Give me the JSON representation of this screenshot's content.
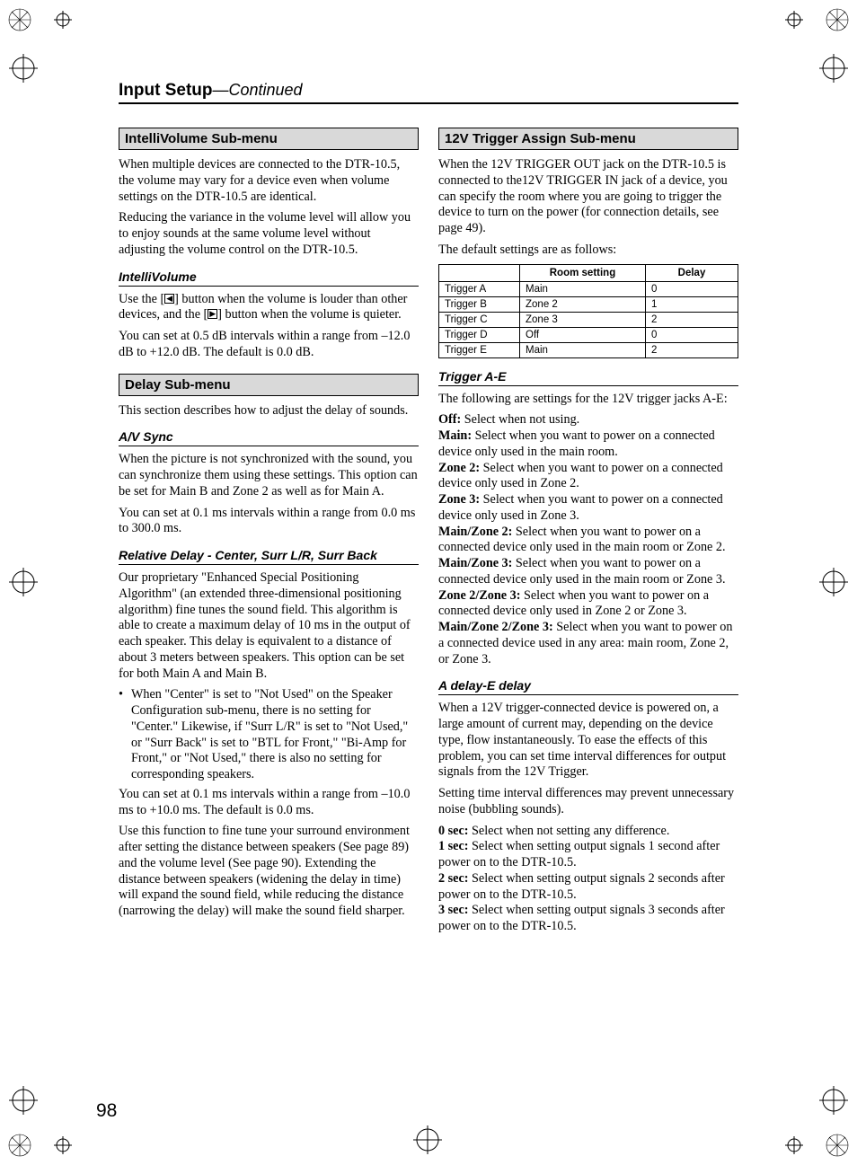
{
  "page": {
    "title_bold": "Input Setup",
    "title_cont": "—Continued",
    "number": "98"
  },
  "left": {
    "h1": "IntelliVolume Sub-menu",
    "p1": "When multiple devices are connected to the DTR-10.5, the volume may vary for a device even when volume settings on the DTR-10.5 are identical.",
    "p2": "Reducing the variance in the volume level will allow you to enjoy sounds at the same volume level without adjusting the volume control on the DTR-10.5.",
    "sub1": "IntelliVolume",
    "p3a": "Use the [",
    "p3b": "] button when the volume is louder than other devices, and the [",
    "p3c": "] button when the volume is quieter.",
    "p4": "You can set at 0.5 dB intervals within a range from –12.0 dB to +12.0 dB. The default is 0.0 dB.",
    "h2": "Delay Sub-menu",
    "p5": "This section describes how to adjust the delay of sounds.",
    "sub2": "A/V Sync",
    "p6": "When the picture is not synchronized with the sound, you can synchronize them using these settings. This option can be set for Main B and Zone 2 as well as for Main A.",
    "p7": "You can set at 0.1 ms intervals within a range from 0.0 ms to 300.0 ms.",
    "sub3": "Relative Delay - Center, Surr L/R, Surr Back",
    "p8": "Our proprietary \"Enhanced Special Positioning Algorithm\" (an extended three-dimensional positioning algorithm) fine tunes the sound field. This algorithm is able to create a maximum delay of 10 ms in the output of each speaker. This delay is equivalent to a distance of about 3 meters between speakers. This option can be set for both Main A and Main B.",
    "bullet1": "When \"Center\" is set to \"Not Used\" on the Speaker Configuration sub-menu, there is no setting for \"Center.\" Likewise, if \"Surr L/R\" is set to \"Not Used,\" or \"Surr Back\" is set to \"BTL for Front,\" \"Bi-Amp for Front,\" or \"Not Used,\" there is also no setting for corresponding speakers.",
    "p9": "You can set at 0.1 ms intervals within a range from –10.0 ms to +10.0 ms. The default is 0.0 ms.",
    "p10": "Use this function to fine tune your surround environment after setting the distance between speakers (See page 89) and the volume level (See page 90). Extending the distance between speakers (widening the delay in time) will expand the sound field, while reducing the distance (narrowing the delay) will make the sound field sharper."
  },
  "right": {
    "h1": "12V Trigger Assign Sub-menu",
    "p1": "When the 12V TRIGGER OUT jack on the DTR-10.5 is connected to the12V TRIGGER IN jack of a device, you can specify the room where you are going to trigger the device to turn on the power (for connection details, see page 49).",
    "p2": "The default settings are as follows:",
    "table": {
      "headers": [
        "",
        "Room setting",
        "Delay"
      ],
      "rows": [
        [
          "Trigger A",
          "Main",
          "0"
        ],
        [
          "Trigger B",
          "Zone 2",
          "1"
        ],
        [
          "Trigger C",
          "Zone 3",
          "2"
        ],
        [
          "Trigger D",
          "Off",
          "0"
        ],
        [
          "Trigger E",
          "Main",
          "2"
        ]
      ]
    },
    "sub1": "Trigger A-E",
    "p3": "The following are settings for the 12V trigger jacks A-E:",
    "defs1": [
      [
        "Off:",
        " Select when not using."
      ],
      [
        "Main:",
        " Select when you want to power on a connected device only used in the main room."
      ],
      [
        "Zone 2:",
        " Select when you want to power on a connected device only used in Zone 2."
      ],
      [
        "Zone 3:",
        " Select when you want to power on a connected device only used in Zone 3."
      ],
      [
        "Main/Zone 2:",
        " Select when you want to power on a connected device only used in the main room or Zone 2."
      ],
      [
        "Main/Zone 3:",
        " Select when you want to power on a connected device only used in the main room or Zone 3."
      ],
      [
        "Zone 2/Zone 3:",
        " Select when you want to power on a connected device only used in Zone 2 or Zone 3."
      ],
      [
        "Main/Zone 2/Zone 3:",
        " Select when you want to power on a connected device used in any area: main room, Zone 2, or Zone 3."
      ]
    ],
    "sub2": "A delay-E delay",
    "p4": "When a 12V trigger-connected device is powered on, a large amount of current may, depending on the device type, flow instantaneously. To ease the effects of this problem, you can set time interval differences for output signals from the 12V Trigger.",
    "p5": "Setting time interval differences may prevent unnecessary noise (bubbling sounds).",
    "defs2": [
      [
        "0 sec:",
        " Select when not setting any difference."
      ],
      [
        "1 sec:",
        " Select when setting output signals 1 second after power on to the DTR-10.5."
      ],
      [
        "2 sec:",
        " Select when setting output signals 2 seconds after power on to the DTR-10.5."
      ],
      [
        "3 sec:",
        " Select when setting output signals 3 seconds after power on to the DTR-10.5."
      ]
    ]
  }
}
